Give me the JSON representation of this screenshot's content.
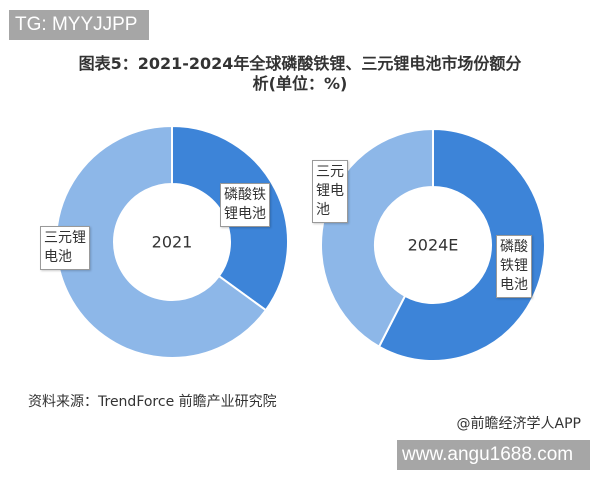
{
  "watermark_top": "TG: MYYJJPP",
  "watermark_bottom": "www.angu1688.com",
  "source": "资料来源：TrendForce 前瞻产业研究院",
  "credit": "@前瞻经济学人APP",
  "chart_data": {
    "type": "pie",
    "title": "图表5：2021-2024年全球磷酸铁锂、三元锂电池市场份额分析(单位：%)",
    "title_line1": "图表5：2021-2024年全球磷酸铁锂、三元锂电池市场份额分",
    "title_line2": "析(单位：%)",
    "style": "donut",
    "colors": {
      "磷酸铁锂电池": "#3d84d8",
      "三元锂电池": "#8db7e8"
    },
    "charts": [
      {
        "center_label": "2021",
        "slices": [
          {
            "name": "磷酸铁锂电池",
            "label_lines": [
              "磷酸铁",
              "锂电池"
            ],
            "value": 35
          },
          {
            "name": "三元锂电池",
            "label_lines": [
              "三元锂",
              "电池"
            ],
            "value": 65
          }
        ]
      },
      {
        "center_label": "2024E",
        "slices": [
          {
            "name": "磷酸铁锂电池",
            "label_lines": [
              "磷酸",
              "铁锂",
              "电池"
            ],
            "value": 58
          },
          {
            "name": "三元锂电池",
            "label_lines": [
              "三元",
              "锂电",
              "池"
            ],
            "value": 42
          }
        ]
      }
    ]
  }
}
